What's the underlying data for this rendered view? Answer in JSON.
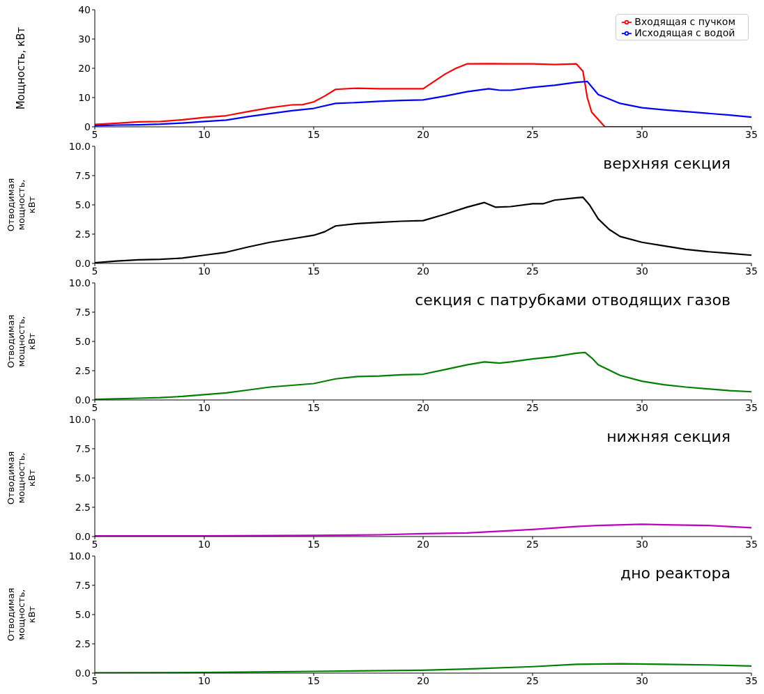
{
  "chart_data": [
    {
      "type": "line",
      "ylabel": "Мощность, кВт",
      "xlim": [
        5,
        35
      ],
      "xticks": [
        5,
        10,
        15,
        20,
        25,
        30,
        35
      ],
      "ylim": [
        0,
        40
      ],
      "yticks": [
        0,
        10,
        20,
        30,
        40
      ],
      "grid": false,
      "legend": "top right",
      "series": [
        {
          "name": "Входящая с пучком",
          "color": "#ff0000",
          "x": [
            5,
            6,
            7,
            8,
            9,
            10,
            11,
            12,
            13,
            14,
            14.5,
            15,
            15.5,
            16,
            17,
            18,
            19,
            20,
            20.5,
            21,
            21.5,
            22,
            23,
            24,
            25,
            26,
            27,
            27.3,
            27.5,
            27.7,
            28,
            28.3,
            30,
            35
          ],
          "values": [
            0.8,
            1.2,
            1.7,
            1.8,
            2.4,
            3.2,
            3.8,
            5.2,
            6.5,
            7.5,
            7.6,
            8.5,
            10.5,
            12.8,
            13.2,
            13,
            13,
            13,
            15.5,
            18,
            20,
            21.5,
            21.6,
            21.5,
            21.5,
            21.3,
            21.5,
            19,
            10,
            5,
            2.5,
            0,
            0,
            0
          ]
        },
        {
          "name": "Исходящая с водой",
          "color": "#0000ff",
          "x": [
            5,
            6,
            7,
            8,
            9,
            10,
            11,
            12,
            13,
            14,
            15,
            16,
            17,
            18,
            19,
            20,
            21,
            22,
            23,
            23.5,
            24,
            25,
            26,
            27,
            27.5,
            28,
            29,
            30,
            31,
            32,
            33,
            34,
            35
          ],
          "values": [
            0.4,
            0.6,
            0.7,
            0.9,
            1.3,
            1.8,
            2.3,
            3.5,
            4.5,
            5.5,
            6.3,
            8,
            8.3,
            8.7,
            9,
            9.2,
            10.5,
            12,
            13,
            12.5,
            12.5,
            13.5,
            14.2,
            15.2,
            15.5,
            11,
            8,
            6.5,
            5.8,
            5.2,
            4.6,
            4,
            3.3
          ]
        }
      ]
    },
    {
      "type": "line",
      "ylabel": "Отводимая мощность, кВт",
      "annotations": [
        "верхняя секция"
      ],
      "xlim": [
        5,
        35
      ],
      "xticks": [
        5,
        10,
        15,
        20,
        25,
        30,
        35
      ],
      "ylim": [
        0,
        10
      ],
      "yticks": [
        {
          "value": 0,
          "label": "0.0"
        },
        {
          "value": 2.5,
          "label": "2.5"
        },
        {
          "value": 5,
          "label": "5.0"
        },
        {
          "value": 7.5,
          "label": "7.5"
        },
        {
          "value": 10,
          "label": "10.0"
        }
      ],
      "grid": false,
      "series": [
        {
          "color": "#000000",
          "x": [
            5,
            6,
            7,
            8,
            9,
            10,
            11,
            12,
            13,
            14,
            15,
            15.5,
            16,
            17,
            18,
            19,
            20,
            21,
            22,
            22.8,
            23.3,
            24,
            25,
            25.5,
            26,
            27,
            27.3,
            27.6,
            28,
            28.5,
            29,
            30,
            31,
            32,
            33,
            34,
            35
          ],
          "values": [
            0.05,
            0.2,
            0.3,
            0.35,
            0.45,
            0.7,
            0.95,
            1.4,
            1.8,
            2.1,
            2.4,
            2.7,
            3.2,
            3.4,
            3.5,
            3.6,
            3.65,
            4.2,
            4.8,
            5.2,
            4.8,
            4.85,
            5.1,
            5.1,
            5.4,
            5.6,
            5.65,
            5,
            3.8,
            2.9,
            2.3,
            1.8,
            1.5,
            1.2,
            1,
            0.85,
            0.7
          ]
        }
      ]
    },
    {
      "type": "line",
      "ylabel": "Отводимая мощность, кВт",
      "annotations": [
        "секция с патрубками отводящих газов"
      ],
      "xlim": [
        5,
        35
      ],
      "xticks": [
        5,
        10,
        15,
        20,
        25,
        30,
        35
      ],
      "ylim": [
        0,
        10
      ],
      "yticks": [
        {
          "value": 0,
          "label": "0.0"
        },
        {
          "value": 2.5,
          "label": "2.5"
        },
        {
          "value": 5,
          "label": "5.0"
        },
        {
          "value": 7.5,
          "label": "7.5"
        },
        {
          "value": 10,
          "label": "10.0"
        }
      ],
      "grid": false,
      "series": [
        {
          "color": "#008000",
          "x": [
            5,
            7,
            8,
            9,
            10,
            11,
            12,
            13,
            14,
            15,
            16,
            17,
            18,
            19,
            20,
            21,
            22,
            22.8,
            23.5,
            24,
            25,
            26,
            27,
            27.4,
            27.7,
            28,
            29,
            30,
            31,
            32,
            33,
            34,
            35
          ],
          "values": [
            0.05,
            0.15,
            0.2,
            0.3,
            0.45,
            0.6,
            0.85,
            1.1,
            1.25,
            1.4,
            1.8,
            2,
            2.05,
            2.15,
            2.2,
            2.6,
            3,
            3.25,
            3.15,
            3.25,
            3.5,
            3.7,
            4,
            4.05,
            3.6,
            3,
            2.1,
            1.6,
            1.3,
            1.1,
            0.95,
            0.8,
            0.7
          ]
        }
      ]
    },
    {
      "type": "line",
      "ylabel": "Отводимая мощность, кВт",
      "annotations": [
        "нижняя секция"
      ],
      "xlim": [
        5,
        35
      ],
      "xticks": [
        5,
        10,
        15,
        20,
        25,
        30,
        35
      ],
      "ylim": [
        0,
        10
      ],
      "yticks": [
        {
          "value": 0,
          "label": "0.0"
        },
        {
          "value": 2.5,
          "label": "2.5"
        },
        {
          "value": 5,
          "label": "5.0"
        },
        {
          "value": 7.5,
          "label": "7.5"
        },
        {
          "value": 10,
          "label": "10.0"
        }
      ],
      "grid": false,
      "series": [
        {
          "color": "#bf00bf",
          "x": [
            5,
            10,
            15,
            18,
            20,
            22,
            25,
            27,
            28,
            30,
            31,
            33,
            35
          ],
          "values": [
            0.05,
            0.05,
            0.1,
            0.15,
            0.25,
            0.3,
            0.6,
            0.85,
            0.95,
            1.05,
            1,
            0.95,
            0.75
          ]
        }
      ]
    },
    {
      "type": "line",
      "ylabel": "Отводимая мощность, кВт",
      "annotations": [
        "дно реактора"
      ],
      "xlim": [
        5,
        35
      ],
      "xticks": [
        5,
        10,
        15,
        20,
        25,
        30,
        35
      ],
      "ylim": [
        0,
        10
      ],
      "yticks": [
        {
          "value": 0,
          "label": "0.0"
        },
        {
          "value": 2.5,
          "label": "2.5"
        },
        {
          "value": 5,
          "label": "5.0"
        },
        {
          "value": 7.5,
          "label": "7.5"
        },
        {
          "value": 10,
          "label": "10.0"
        }
      ],
      "grid": false,
      "series": [
        {
          "color": "#008000",
          "x": [
            5,
            10,
            15,
            20,
            22,
            25,
            27,
            29,
            31,
            33,
            35
          ],
          "values": [
            0.02,
            0.05,
            0.15,
            0.25,
            0.35,
            0.55,
            0.75,
            0.8,
            0.75,
            0.7,
            0.6
          ]
        }
      ]
    }
  ]
}
